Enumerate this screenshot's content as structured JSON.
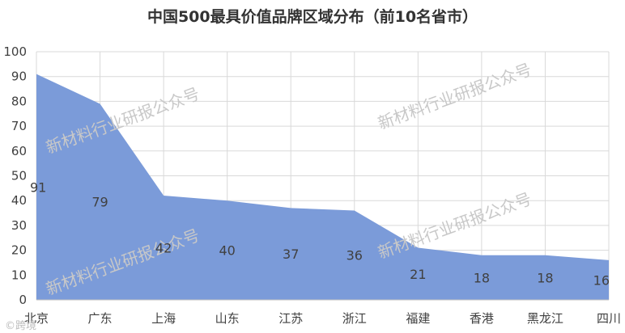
{
  "chart_data": {
    "type": "area",
    "title": "中国500最具价值品牌区域分布（前10名省市）",
    "categories": [
      "北京",
      "广东",
      "上海",
      "山东",
      "江苏",
      "浙江",
      "福建",
      "香港",
      "黑龙江",
      "四川"
    ],
    "values": [
      91,
      79,
      42,
      40,
      37,
      36,
      21,
      18,
      18,
      16
    ],
    "ylim": [
      0,
      100
    ],
    "yticks": [
      0,
      10,
      20,
      30,
      40,
      50,
      60,
      70,
      80,
      90,
      100
    ],
    "grid": true,
    "legend": "none",
    "colors": {
      "fill": "#7b9bd9",
      "grid": "#d9d9d9",
      "axis": "#bfbfbf"
    }
  },
  "watermark": "新材料行业研报公众号",
  "footer_text": "©跨境"
}
